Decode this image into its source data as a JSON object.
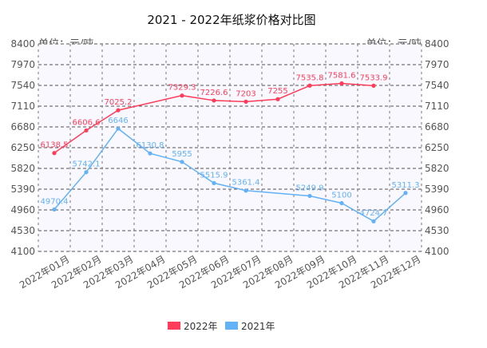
{
  "chart_data": {
    "type": "line",
    "title": "2021 - 2022年纸浆价格对比图",
    "unit_left": "单位：元/吨",
    "unit_right": "单位：元/吨",
    "categories": [
      "2022年01月",
      "2022年02月",
      "2022年03月",
      "2022年04月",
      "2022年05月",
      "2022年06月",
      "2022年07月",
      "2022年08月",
      "2022年09月",
      "2022年10月",
      "2022年11月",
      "2022年12月"
    ],
    "y_ticks": [
      4100,
      4530,
      4960,
      5390,
      5820,
      6250,
      6680,
      7110,
      7540,
      7970,
      8400
    ],
    "ylim": [
      4100,
      8400
    ],
    "grid": true,
    "legend_position": "bottom-center",
    "series": [
      {
        "name": "2022年",
        "color": "#ff3d5a",
        "values": [
          6138.5,
          6606.6,
          7025.2,
          null,
          7329.3,
          7226.6,
          7203,
          7255,
          7535.8,
          7581.6,
          7533.9,
          null
        ],
        "labels": [
          "6138.5",
          "6606.6",
          "7025.2",
          "",
          "7329.3",
          "7226.6",
          "7203",
          "7255",
          "7535.8",
          "7581.6",
          "7533.9",
          ""
        ]
      },
      {
        "name": "2021年",
        "color": "#63b1f7",
        "values": [
          4970.4,
          5742.1,
          6646,
          6130.8,
          5955,
          5515.9,
          5361.4,
          null,
          5249.9,
          5100,
          4724.7,
          5311.3
        ],
        "labels": [
          "4970.4",
          "5742.1",
          "6646",
          "6130.8",
          "5955",
          "5515.9",
          "5361.4",
          "",
          "5249.9",
          "5100",
          "4724.7",
          "5311.3"
        ]
      }
    ]
  }
}
